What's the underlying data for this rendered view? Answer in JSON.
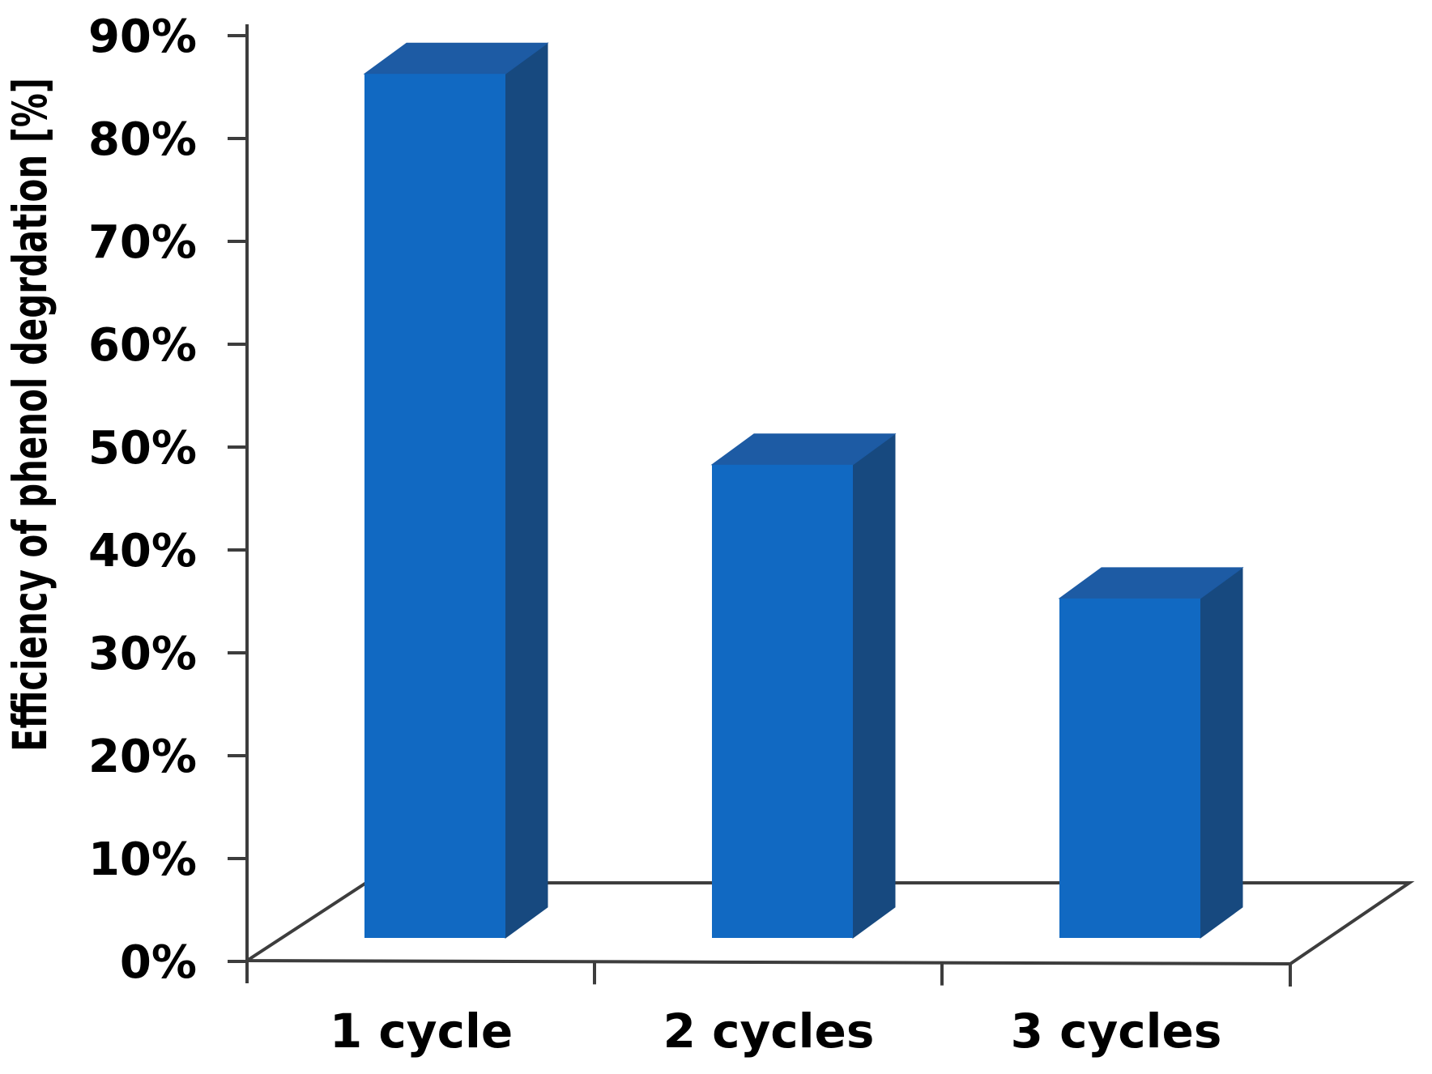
{
  "chart_data": {
    "type": "bar",
    "style": "3d-column",
    "title": "",
    "categories": [
      "1 cycle",
      "2 cycles",
      "3 cycles"
    ],
    "values": [
      84,
      46,
      33
    ],
    "value_unit": "%",
    "xlabel": "",
    "ylabel": "Efficiency of phenol degrdation [%]",
    "ylim": [
      0,
      90
    ],
    "ytick_step": 10,
    "yticks": [
      0,
      10,
      20,
      30,
      40,
      50,
      60,
      70,
      80,
      90
    ],
    "ytick_labels": [
      "0%",
      "10%",
      "20%",
      "30%",
      "40%",
      "50%",
      "60%",
      "70%",
      "80%",
      "90%"
    ],
    "grid": false,
    "legend": false,
    "colors": {
      "bar_front": "#1169c2",
      "bar_side": "#17497f",
      "bar_top": "#1d5ba4",
      "axis": "#3d3d3d",
      "text": "#000000",
      "background": "#ffffff"
    }
  }
}
